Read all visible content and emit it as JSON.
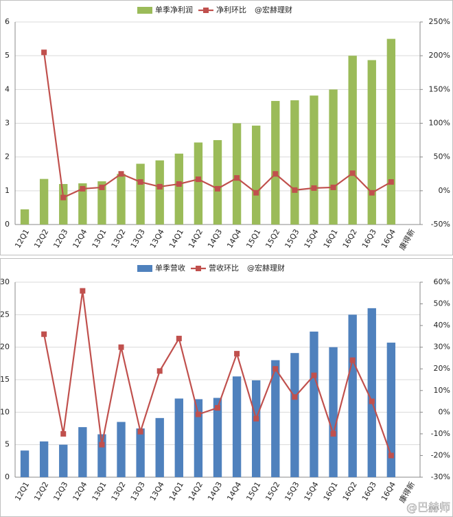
{
  "chart_data": [
    {
      "type": "bar-line",
      "legend_note": "@宏赫理财",
      "categories": [
        "12Q1",
        "12Q2",
        "12Q3",
        "12Q4",
        "13Q1",
        "13Q2",
        "13Q3",
        "13Q4",
        "14Q1",
        "14Q2",
        "14Q3",
        "14Q4",
        "15Q1",
        "15Q2",
        "15Q3",
        "15Q4",
        "16Q1",
        "16Q2",
        "16Q3",
        "16Q4",
        "康得新"
      ],
      "series": [
        {
          "name": "单季净利润",
          "color": "#9bbb59",
          "kind": "bar",
          "values": [
            0.45,
            1.35,
            1.2,
            1.22,
            1.28,
            1.5,
            1.8,
            1.9,
            2.1,
            2.43,
            2.5,
            3.0,
            2.93,
            3.66,
            3.68,
            3.82,
            4.0,
            5.0,
            4.87,
            5.5,
            null
          ]
        },
        {
          "name": "净利环比",
          "color": "#c0504d",
          "kind": "line",
          "axis": "y2",
          "values": [
            null,
            205,
            -10,
            3,
            5,
            25,
            13,
            6,
            10,
            17,
            3,
            19,
            -3,
            25,
            1,
            4,
            5,
            26,
            -3,
            13,
            null
          ]
        }
      ],
      "ylim": [
        0,
        6
      ],
      "yticks": [
        0,
        1,
        2,
        3,
        4,
        5,
        6
      ],
      "y2lim": [
        -50,
        250
      ],
      "y2ticks": [
        {
          "value": -50,
          "label": "-50%"
        },
        {
          "value": 0,
          "label": "0%"
        },
        {
          "value": 50,
          "label": "50%"
        },
        {
          "value": 100,
          "label": "100%"
        },
        {
          "value": 150,
          "label": "150%"
        },
        {
          "value": 200,
          "label": "200%"
        },
        {
          "value": 250,
          "label": "250%"
        }
      ],
      "grid": true
    },
    {
      "type": "bar-line",
      "legend_note": "@宏赫理财",
      "watermark": "@巴赫师",
      "categories": [
        "12Q1",
        "12Q2",
        "12Q3",
        "12Q4",
        "13Q1",
        "13Q2",
        "13Q3",
        "13Q4",
        "14Q1",
        "14Q2",
        "14Q3",
        "14Q4",
        "15Q1",
        "15Q2",
        "15Q3",
        "15Q4",
        "16Q1",
        "16Q2",
        "16Q3",
        "16Q4",
        "康得新"
      ],
      "series": [
        {
          "name": "单季营收",
          "color": "#4f81bd",
          "kind": "bar",
          "values": [
            4.1,
            5.5,
            5.0,
            7.7,
            6.6,
            8.5,
            7.5,
            9.1,
            12.1,
            12.0,
            12.2,
            15.5,
            14.9,
            18.0,
            19.1,
            22.4,
            20.0,
            25.0,
            26.0,
            20.7,
            null
          ]
        },
        {
          "name": "营收环比",
          "color": "#c0504d",
          "kind": "line",
          "axis": "y2",
          "values": [
            null,
            36,
            -10,
            56,
            -15,
            30,
            -9,
            19,
            34,
            -1,
            2,
            27,
            -3,
            20,
            7,
            17,
            -10,
            24,
            5,
            -20,
            null
          ]
        }
      ],
      "ylim": [
        0,
        30
      ],
      "yticks": [
        0,
        5,
        10,
        15,
        20,
        25,
        30
      ],
      "y2lim": [
        -30,
        60
      ],
      "y2ticks": [
        {
          "value": -30,
          "label": "-30%"
        },
        {
          "value": -20,
          "label": "-20%"
        },
        {
          "value": -10,
          "label": "-10%"
        },
        {
          "value": 0,
          "label": "0%"
        },
        {
          "value": 10,
          "label": "10%"
        },
        {
          "value": 20,
          "label": "20%"
        },
        {
          "value": 30,
          "label": "30%"
        },
        {
          "value": 40,
          "label": "40%"
        },
        {
          "value": 50,
          "label": "50%"
        },
        {
          "value": 60,
          "label": "60%"
        }
      ],
      "grid": true
    }
  ]
}
